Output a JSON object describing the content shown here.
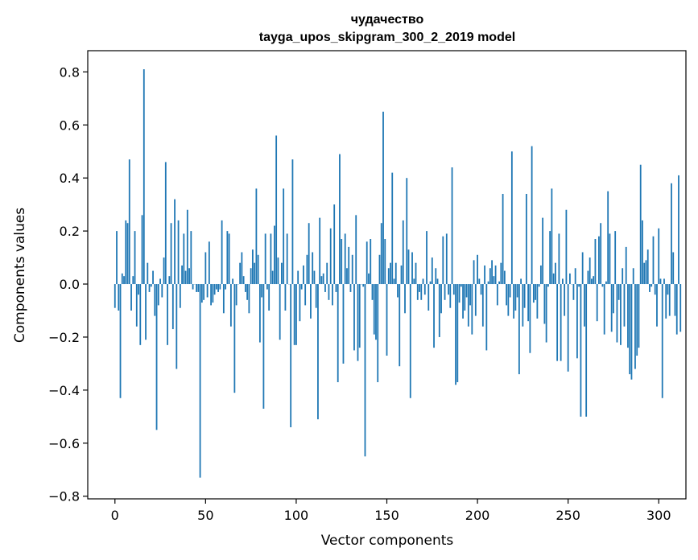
{
  "chart_data": {
    "type": "bar",
    "title": "чудачество",
    "subtitle": "tayga_upos_skipgram_300_2_2019 model",
    "xlabel": "Vector components",
    "ylabel": "Components values",
    "xlim": [
      -15,
      315
    ],
    "ylim": [
      -0.81,
      0.88
    ],
    "xticks": [
      0,
      50,
      100,
      150,
      200,
      250,
      300
    ],
    "yticks": [
      -0.8,
      -0.6,
      -0.4,
      -0.2,
      0.0,
      0.2,
      0.4,
      0.6,
      0.8
    ],
    "ytick_labels": [
      "−0.8",
      "−0.6",
      "−0.4",
      "−0.2",
      "0.0",
      "0.2",
      "0.4",
      "0.6",
      "0.8"
    ],
    "grid": false,
    "bar_color": "#1f77b4",
    "values": [
      -0.09,
      0.2,
      -0.1,
      -0.43,
      0.04,
      0.03,
      0.24,
      0.23,
      0.47,
      -0.1,
      0.03,
      0.2,
      -0.16,
      -0.04,
      -0.23,
      0.26,
      0.81,
      -0.21,
      0.08,
      -0.03,
      -0.01,
      0.05,
      -0.12,
      -0.55,
      -0.08,
      0.02,
      -0.05,
      0.1,
      0.46,
      -0.23,
      0.03,
      0.23,
      -0.17,
      0.32,
      -0.32,
      0.24,
      -0.09,
      0.07,
      0.19,
      0.05,
      0.28,
      0.06,
      0.2,
      -0.02,
      0.0,
      -0.03,
      -0.03,
      -0.73,
      -0.07,
      -0.06,
      0.12,
      -0.05,
      0.16,
      -0.08,
      -0.07,
      -0.04,
      -0.02,
      -0.03,
      -0.02,
      0.24,
      -0.11,
      -0.02,
      0.2,
      0.19,
      -0.16,
      0.02,
      -0.41,
      -0.08,
      0.0,
      0.08,
      0.12,
      0.03,
      -0.03,
      -0.06,
      -0.11,
      0.06,
      0.13,
      0.08,
      0.36,
      0.11,
      -0.22,
      -0.05,
      -0.47,
      0.19,
      -0.02,
      -0.1,
      0.19,
      0.05,
      0.22,
      0.56,
      0.1,
      -0.21,
      0.08,
      0.36,
      -0.1,
      0.19,
      0.0,
      -0.54,
      0.47,
      -0.23,
      -0.23,
      0.05,
      -0.14,
      -0.02,
      0.07,
      -0.08,
      0.11,
      0.23,
      -0.13,
      0.12,
      0.05,
      -0.09,
      -0.51,
      0.25,
      0.03,
      0.04,
      -0.03,
      0.08,
      -0.06,
      0.21,
      -0.08,
      0.3,
      -0.03,
      -0.37,
      0.49,
      0.17,
      -0.3,
      0.19,
      0.06,
      0.14,
      -0.03,
      0.11,
      -0.25,
      0.26,
      -0.29,
      -0.24,
      0.0,
      -0.01,
      -0.65,
      0.16,
      0.04,
      0.17,
      -0.06,
      -0.19,
      -0.21,
      -0.37,
      0.11,
      0.23,
      0.65,
      0.17,
      -0.27,
      0.06,
      0.08,
      0.42,
      0.02,
      0.08,
      -0.05,
      -0.31,
      0.07,
      0.24,
      -0.11,
      0.4,
      0.13,
      -0.43,
      0.12,
      0.02,
      0.08,
      -0.06,
      -0.03,
      -0.06,
      0.02,
      -0.04,
      0.2,
      -0.1,
      0.01,
      0.1,
      -0.24,
      0.06,
      0.02,
      -0.2,
      -0.11,
      0.18,
      -0.06,
      0.19,
      -0.04,
      -0.09,
      0.44,
      -0.04,
      -0.38,
      -0.37,
      -0.07,
      -0.01,
      -0.13,
      -0.1,
      -0.05,
      -0.16,
      -0.08,
      -0.19,
      0.09,
      -0.12,
      0.11,
      0.02,
      -0.04,
      -0.16,
      0.07,
      -0.25,
      0.01,
      0.06,
      0.09,
      0.03,
      0.07,
      -0.08,
      0.01,
      0.08,
      0.34,
      0.05,
      -0.08,
      -0.12,
      -0.05,
      0.5,
      -0.13,
      -0.1,
      -0.05,
      -0.34,
      0.02,
      -0.16,
      -0.09,
      0.34,
      -0.14,
      -0.26,
      0.52,
      -0.07,
      -0.06,
      -0.13,
      -0.01,
      0.07,
      0.25,
      -0.15,
      -0.22,
      -0.01,
      0.2,
      0.36,
      0.04,
      0.08,
      -0.29,
      0.19,
      -0.29,
      0.02,
      -0.12,
      0.28,
      -0.33,
      0.04,
      0.0,
      -0.06,
      0.06,
      -0.28,
      -0.01,
      -0.5,
      0.12,
      -0.16,
      -0.5,
      0.05,
      0.1,
      0.02,
      0.03,
      0.17,
      -0.14,
      0.18,
      0.23,
      -0.01,
      -0.19,
      0.01,
      0.35,
      0.19,
      -0.18,
      -0.11,
      0.2,
      -0.22,
      -0.06,
      -0.23,
      0.06,
      -0.16,
      0.14,
      -0.24,
      -0.34,
      -0.36,
      0.06,
      -0.32,
      -0.27,
      -0.24,
      0.45,
      0.24,
      0.08,
      0.09,
      0.13,
      -0.03,
      -0.01,
      0.18,
      -0.04,
      -0.16,
      0.21,
      0.02,
      -0.43,
      0.02,
      -0.13,
      -0.04,
      -0.12,
      0.38,
      0.12,
      -0.12,
      -0.19,
      0.41,
      -0.18
    ]
  }
}
